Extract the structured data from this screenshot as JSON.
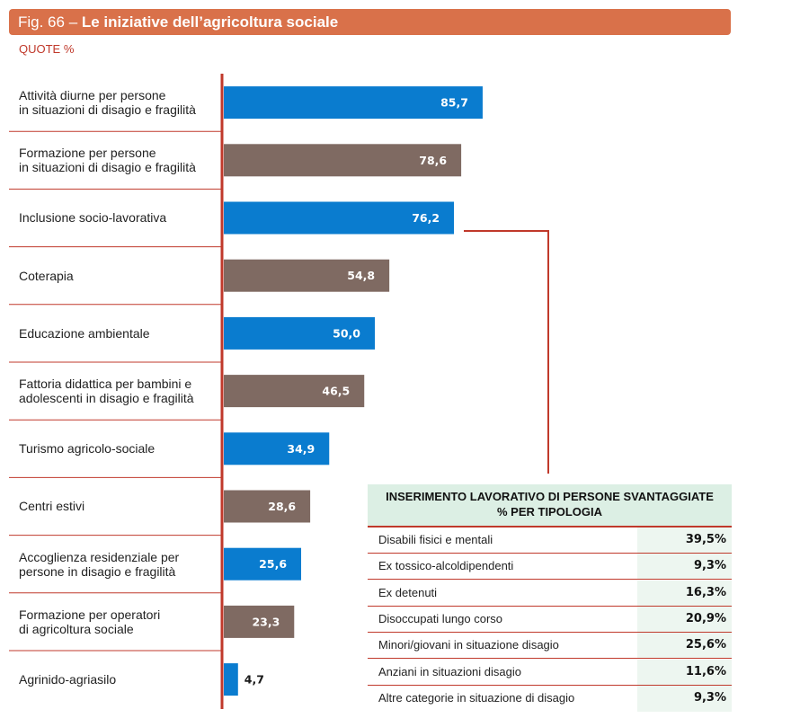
{
  "header": {
    "fig": "Fig. 66 – ",
    "title": "Le iniziative dell’agricoltura sociale"
  },
  "subtitle": "QUOTE %",
  "colors": {
    "blue": "#0a7ccf",
    "brown": "#7f6a62",
    "axis": "#c0392b",
    "separator": "#c0392b"
  },
  "chart_data": {
    "type": "bar",
    "orientation": "horizontal",
    "categories": [
      "Attività diurne per persone\nin situazioni di disagio e fragilità",
      "Formazione per persone\nin situazioni di disagio e fragilità",
      "Inclusione socio-lavorativa",
      "Coterapia",
      "Educazione ambientale",
      "Fattoria didattica per bambini e\nadolescenti in  disagio e fragilità",
      "Turismo agricolo-sociale",
      "Centri estivi",
      "Accoglienza residenziale per\npersone in disagio e fragilità",
      "Formazione per operatori\ndi agricoltura sociale",
      "Agrinido-agriasilo"
    ],
    "values": [
      85.7,
      78.6,
      76.2,
      54.8,
      50.0,
      46.5,
      34.9,
      28.6,
      25.6,
      23.3,
      4.7
    ],
    "value_labels": [
      "85,7",
      "78,6",
      "76,2",
      "54,8",
      "50,0",
      "46,5",
      "34,9",
      "28,6",
      "25,6",
      "23,3",
      "4,7"
    ],
    "bar_colors": [
      "blue",
      "brown",
      "blue",
      "brown",
      "blue",
      "brown",
      "blue",
      "brown",
      "blue",
      "brown",
      "blue"
    ],
    "xlim": [
      0,
      100
    ],
    "grid": false
  },
  "table": {
    "title_line1": "INSERIMENTO LAVORATIVO DI PERSONE SVANTAGGIATE",
    "title_line2": "% PER TIPOLOGIA",
    "rows": [
      {
        "label": "Disabili fisici e mentali",
        "value": "39,5%"
      },
      {
        "label": "Ex tossico-alcoldipendenti",
        "value": "9,3%"
      },
      {
        "label": "Ex detenuti",
        "value": "16,3%"
      },
      {
        "label": "Disoccupati lungo corso",
        "value": "20,9%"
      },
      {
        "label": "Minori/giovani in situazione disagio",
        "value": "25,6%"
      },
      {
        "label": "Anziani in situazioni disagio",
        "value": "11,6%"
      },
      {
        "label": "Altre categorie in situazione di disagio",
        "value": "9,3%"
      }
    ]
  }
}
